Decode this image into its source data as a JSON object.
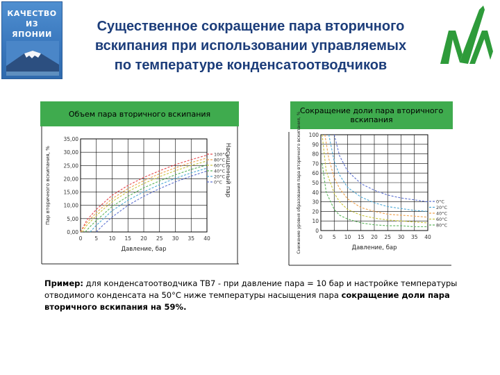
{
  "badge": {
    "lines": [
      "КАЧЕСТВО",
      "ИЗ",
      "ЯПОНИИ"
    ],
    "sky_color": "#3a78be",
    "mountain": "mount-fuji-image"
  },
  "title": {
    "lines": [
      "Существенное сокращение пара вторичного",
      "вскипания при использовании управляемых",
      "по температуре конденсатоотводчиков"
    ],
    "color": "#1c3d7a"
  },
  "logo": {
    "icon": "tlv-green-logo",
    "color": "#2e9b3a"
  },
  "chart_data": [
    {
      "type": "line",
      "title": "Объем  пара вторичного вскипания",
      "xlabel": "Давление, бар",
      "ylabel": "Пар вторичного вскипания, %",
      "right_label": "Насыщенный пар",
      "x_ticks": [
        "0",
        "5",
        "10",
        "15",
        "20",
        "25",
        "30",
        "35",
        "40"
      ],
      "y_ticks": [
        "0,00",
        "5,00",
        "10,00",
        "15,00",
        "20,00",
        "25,00",
        "30,00",
        "35,00"
      ],
      "xlim": [
        0,
        40
      ],
      "ylim": [
        0,
        35
      ],
      "grid": true,
      "legend_position": "right",
      "series": [
        {
          "name": "100°C",
          "color": "#e8474c",
          "x": [
            0,
            2,
            5,
            10,
            15,
            20,
            25,
            30,
            35,
            40
          ],
          "y": [
            0,
            4.5,
            8.5,
            13.8,
            17.5,
            20.5,
            23.0,
            25.3,
            27.2,
            28.9
          ]
        },
        {
          "name": "80°C",
          "color": "#f0a14a",
          "x": [
            0,
            2,
            5,
            10,
            15,
            20,
            25,
            30,
            35,
            40
          ],
          "y": [
            0,
            3.5,
            7.3,
            12.5,
            16.3,
            19.3,
            21.9,
            24.1,
            26.1,
            27.8
          ]
        },
        {
          "name": "60°C",
          "color": "#c9c43a",
          "x": [
            0.5,
            2,
            5,
            10,
            15,
            20,
            25,
            30,
            35,
            40
          ],
          "y": [
            0,
            2.5,
            6.2,
            11.4,
            15.2,
            18.2,
            20.8,
            23.0,
            25.0,
            26.7
          ]
        },
        {
          "name": "40°C",
          "color": "#5ab55a",
          "x": [
            1.5,
            3,
            5,
            10,
            15,
            20,
            25,
            30,
            35,
            40
          ],
          "y": [
            0,
            2.0,
            4.3,
            9.6,
            13.4,
            16.6,
            19.2,
            21.5,
            23.5,
            25.2
          ]
        },
        {
          "name": "20°C",
          "color": "#4aa8d6",
          "x": [
            3,
            5,
            10,
            15,
            20,
            25,
            30,
            35,
            40
          ],
          "y": [
            0,
            2.5,
            8.0,
            11.9,
            15.1,
            17.8,
            20.2,
            22.2,
            24.0
          ]
        },
        {
          "name": "0°C",
          "color": "#5a6fd0",
          "x": [
            5,
            7,
            10,
            15,
            20,
            25,
            30,
            35,
            40
          ],
          "y": [
            0,
            2.4,
            5.6,
            10.0,
            13.4,
            16.3,
            18.8,
            21.0,
            22.9
          ]
        }
      ]
    },
    {
      "type": "line",
      "title": "Сокращение доли пара вторичного вскипания",
      "xlabel": "Давление, бар",
      "ylabel": "Снижение уровня образования пара вторичного вскипания, %",
      "x_ticks": [
        "0",
        "5",
        "10",
        "15",
        "20",
        "25",
        "30",
        "35",
        "40"
      ],
      "y_ticks": [
        "0",
        "10",
        "20",
        "30",
        "40",
        "50",
        "60",
        "70",
        "80",
        "90",
        "100"
      ],
      "xlim": [
        0,
        40
      ],
      "ylim": [
        0,
        100
      ],
      "grid": true,
      "legend_position": "right",
      "series": [
        {
          "name": "0°C",
          "color": "#5a6fd0",
          "x": [
            5,
            7,
            10,
            15,
            20,
            25,
            30,
            35,
            40
          ],
          "y": [
            100,
            78,
            62,
            49,
            42,
            37,
            34,
            32,
            30
          ]
        },
        {
          "name": "20°C",
          "color": "#4aa8d6",
          "x": [
            3,
            5,
            7,
            10,
            15,
            20,
            25,
            30,
            35,
            40
          ],
          "y": [
            100,
            72,
            58,
            45,
            35,
            29,
            25,
            23,
            21,
            20
          ]
        },
        {
          "name": "40°C",
          "color": "#f0a14a",
          "x": [
            1.5,
            3,
            5,
            7,
            10,
            15,
            20,
            25,
            30,
            35,
            40
          ],
          "y": [
            100,
            75,
            55,
            44,
            33,
            24,
            20,
            17,
            16,
            15,
            14
          ]
        },
        {
          "name": "60°C",
          "color": "#c9c43a",
          "x": [
            0.5,
            2,
            5,
            7,
            10,
            15,
            20,
            25,
            30,
            35,
            40
          ],
          "y": [
            100,
            62,
            39,
            30,
            22,
            16,
            13,
            11,
            10,
            9,
            8
          ]
        },
        {
          "name": "80°C",
          "color": "#5ab55a",
          "x": [
            0.5,
            2,
            5,
            7,
            10,
            15,
            20,
            25,
            30,
            35,
            40
          ],
          "y": [
            70,
            40,
            22,
            16,
            12,
            8,
            6,
            5,
            5,
            4,
            4
          ]
        }
      ]
    }
  ],
  "example": {
    "label": "Пример:",
    "text": " для конденсатоотводчика ТВ7 - при давление пара = 10 бар и настройке температуры отводимого конденсата на 50°C ниже температуры насыщения пара ",
    "highlight": "сокращение доли пара вторичного вскипания на 59%."
  }
}
